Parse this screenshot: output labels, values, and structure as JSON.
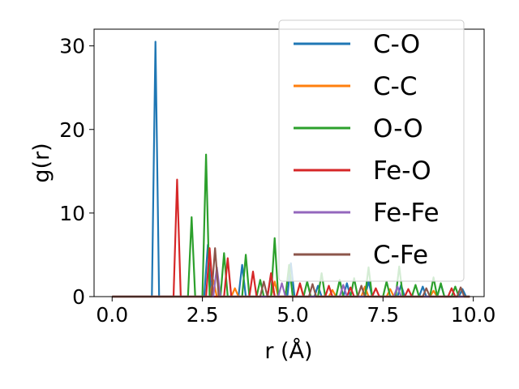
{
  "chart_data": {
    "type": "line",
    "title": "",
    "xlabel": "r (Å)",
    "ylabel": "g(r)",
    "xlim": [
      -0.5,
      10.3
    ],
    "ylim": [
      0,
      32
    ],
    "xticks": [
      0.0,
      2.5,
      5.0,
      7.5,
      10.0
    ],
    "xtick_labels": [
      "0.0",
      "2.5",
      "5.0",
      "7.5",
      "10.0"
    ],
    "yticks": [
      0,
      10,
      20,
      30
    ],
    "ytick_labels": [
      "0",
      "10",
      "20",
      "30"
    ],
    "grid": false,
    "legend": {
      "placement": "top-right"
    },
    "series": [
      {
        "name": "C-O",
        "color": "#1f77b4",
        "x": [
          0,
          1.1,
          1.2,
          1.3,
          2.55,
          2.65,
          2.75,
          3.5,
          3.6,
          3.7,
          4.3,
          4.4,
          4.5,
          4.85,
          4.95,
          5.05,
          5.6,
          5.7,
          5.8,
          6.4,
          6.5,
          6.6,
          7.0,
          7.1,
          7.2,
          7.9,
          8.0,
          8.1,
          8.5,
          8.6,
          8.7,
          9.0,
          9.1,
          9.2,
          9.6,
          9.7,
          9.8,
          9.9
        ],
        "y": [
          0,
          0,
          30.5,
          0,
          0,
          6.2,
          0,
          0,
          3.8,
          0,
          0,
          2.6,
          0,
          0,
          4.0,
          0,
          0,
          1.3,
          0,
          0,
          1.6,
          0,
          0,
          1.8,
          0,
          0,
          1.4,
          0,
          0,
          1.2,
          0,
          0,
          1.5,
          0,
          0,
          0.9,
          0,
          0
        ]
      },
      {
        "name": "C-C",
        "color": "#ff7f0e",
        "x": [
          0,
          2.7,
          2.8,
          2.9,
          3.3,
          3.4,
          3.5,
          4.4,
          4.5,
          4.6,
          5.1,
          5.2,
          5.3,
          6.0,
          6.1,
          6.2,
          6.9,
          7.0,
          7.1,
          7.6,
          7.7,
          7.8,
          8.8,
          8.9,
          9.0,
          9.9
        ],
        "y": [
          0,
          0,
          2.0,
          0,
          0,
          1.0,
          0,
          0,
          1.8,
          0,
          0,
          1.5,
          0,
          0,
          0.8,
          0,
          0,
          1.2,
          0,
          0,
          0.9,
          0,
          0,
          0.7,
          0,
          0
        ]
      },
      {
        "name": "O-O",
        "color": "#2ca02c",
        "x": [
          0,
          2.1,
          2.2,
          2.3,
          2.5,
          2.6,
          2.7,
          3.0,
          3.1,
          3.2,
          3.6,
          3.7,
          3.8,
          4.0,
          4.1,
          4.2,
          4.4,
          4.5,
          4.6,
          4.8,
          4.9,
          5.0,
          5.3,
          5.4,
          5.5,
          5.7,
          5.8,
          5.9,
          6.2,
          6.3,
          6.4,
          6.6,
          6.7,
          6.8,
          7.0,
          7.1,
          7.2,
          7.5,
          7.6,
          7.7,
          7.85,
          7.95,
          8.05,
          8.3,
          8.4,
          8.5,
          8.8,
          8.9,
          9.0,
          9.1,
          9.2,
          9.4,
          9.5,
          9.6,
          9.8,
          9.9
        ],
        "y": [
          0,
          0,
          9.5,
          0,
          0,
          17.0,
          0,
          0,
          5.2,
          0,
          0,
          5.0,
          0,
          0,
          2.0,
          0,
          0,
          7.0,
          0,
          0,
          3.8,
          0,
          0,
          1.8,
          0,
          0,
          2.8,
          0,
          0,
          2.0,
          0,
          0,
          2.2,
          0,
          0,
          3.5,
          0,
          0,
          1.8,
          0,
          0,
          3.6,
          0,
          0,
          1.4,
          0,
          0,
          2.3,
          0,
          1.6,
          0,
          0,
          1.2,
          0,
          0,
          0
        ]
      },
      {
        "name": "Fe-O",
        "color": "#d62728",
        "x": [
          0,
          1.7,
          1.8,
          1.9,
          2.6,
          2.7,
          2.8,
          3.1,
          3.2,
          3.3,
          3.8,
          3.9,
          4.0,
          4.3,
          4.4,
          4.5,
          5.1,
          5.2,
          5.3,
          5.9,
          6.0,
          6.1,
          6.5,
          6.6,
          6.7,
          7.2,
          7.3,
          7.4,
          8.1,
          8.2,
          8.3,
          9.3,
          9.4,
          9.5,
          9.9
        ],
        "y": [
          0,
          0,
          14.0,
          0,
          0,
          5.8,
          0,
          0,
          4.6,
          0,
          0,
          3.0,
          0,
          0,
          2.8,
          0,
          0,
          1.6,
          0,
          0,
          1.3,
          0,
          0,
          1.1,
          0,
          0,
          1.0,
          0,
          0,
          0.9,
          0,
          0,
          1.0,
          0,
          0
        ]
      },
      {
        "name": "Fe-Fe",
        "color": "#9467bd",
        "x": [
          0,
          2.8,
          2.9,
          3.0,
          4.6,
          4.7,
          4.8,
          6.3,
          6.4,
          6.5,
          7.8,
          7.9,
          8.0,
          9.9
        ],
        "y": [
          0,
          0,
          3.5,
          0,
          0,
          1.6,
          0,
          0,
          1.4,
          0,
          0,
          1.2,
          0,
          0
        ]
      },
      {
        "name": "C-Fe",
        "color": "#8c564b",
        "x": [
          0,
          2.75,
          2.85,
          2.95,
          4.1,
          4.2,
          4.3,
          5.45,
          5.55,
          5.65,
          6.8,
          6.9,
          7.0,
          8.6,
          8.7,
          8.8,
          9.55,
          9.65,
          9.75,
          9.9
        ],
        "y": [
          0,
          0,
          5.8,
          0,
          0,
          1.8,
          0,
          0,
          1.5,
          0,
          0,
          1.3,
          0,
          0,
          1.0,
          0,
          0,
          1.1,
          0,
          0
        ]
      }
    ]
  }
}
